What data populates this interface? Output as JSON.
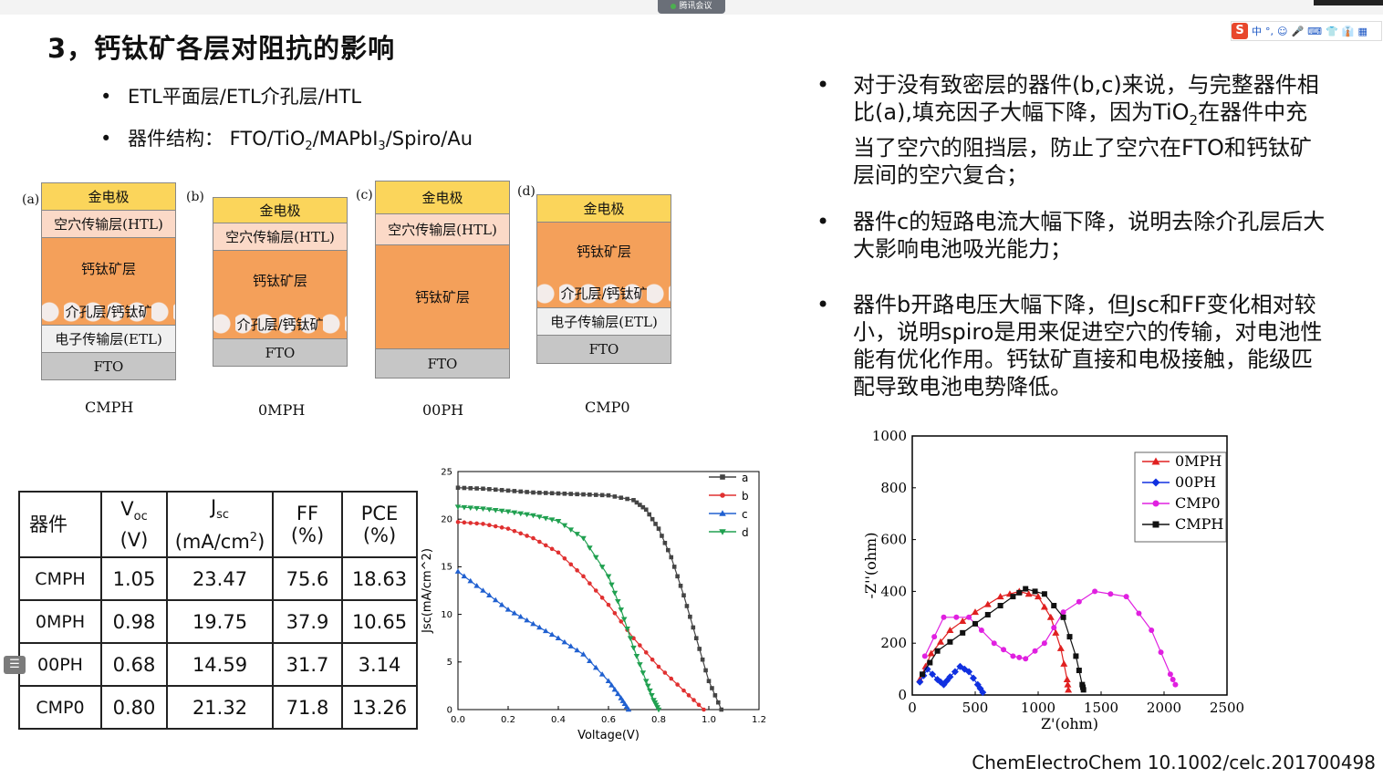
{
  "meeting": {
    "label": "腾讯会议"
  },
  "ime": {
    "logo": "S",
    "items": [
      "中",
      "°,",
      "☺",
      "🎤",
      "⌨",
      "👕",
      "👔",
      "▦"
    ]
  },
  "title": "3，钙钛矿各层对阻抗的影响",
  "bullets": {
    "b1": "ETL平面层/ETL介孔层/HTL",
    "b2_prefix": "器件结构：  FTO/TiO",
    "b2_sub1": "2",
    "b2_mid": "/MAPbI",
    "b2_sub2": "3",
    "b2_suffix": "/Spiro/Au",
    "marker": "•"
  },
  "stacks": [
    {
      "letter": "(a)",
      "name": "CMPH",
      "layers": [
        "金电极",
        "空穴传输层(HTL)",
        "钙钛矿层",
        "介孔层/钙钛矿",
        "电子传输层(ETL)",
        "FTO"
      ]
    },
    {
      "letter": "(b)",
      "name": "0MPH",
      "layers": [
        "金电极",
        "空穴传输层(HTL)",
        "钙钛矿层",
        "介孔层/钙钛矿",
        "FTO"
      ]
    },
    {
      "letter": "(c)",
      "name": "00PH",
      "layers": [
        "金电极",
        "空穴传输层(HTL)",
        "钙钛矿层",
        "FTO"
      ]
    },
    {
      "letter": "(d)",
      "name": "CMP0",
      "layers": [
        "金电极",
        "钙钛矿层",
        "介孔层/钙钛矿",
        "电子传输层(ETL)",
        "FTO"
      ]
    }
  ],
  "right_bullets": {
    "p1_a": "对于没有致密层的器件(b,c)来说，与完整器件相比(a),填充因子大幅下降，因为TiO",
    "p1_sub": "2",
    "p1_b": "在器件中充当了空穴的阻挡层，防止了空穴在FTO和钙钛矿层间的空穴复合；",
    "p2": "器件c的短路电流大幅下降，说明去除介孔层后大大影响电池吸光能力；",
    "p3": "器件b开路电压大幅下降，但Jsc和FF变化相对较小，说明spiro是用来促进空穴的传输，对电池性能有优化作用。钙钛矿直接和电极接触，能级匹配导致电池电势降低。"
  },
  "table": {
    "headers": {
      "device": "器件",
      "voc_main": "V",
      "voc_sub": "oc",
      "voc_unit": "(V)",
      "jsc_main": "J",
      "jsc_sub": "sc",
      "jsc_unit_a": "(mA/cm",
      "jsc_unit_sup": "2",
      "jsc_unit_b": ")",
      "ff": "FF",
      "ff_unit": "(%)",
      "pce": "PCE",
      "pce_unit": "(%)"
    },
    "rows": [
      {
        "device": "CMPH",
        "voc": "1.05",
        "jsc": "23.47",
        "ff": "75.6",
        "pce": "18.63"
      },
      {
        "device": "0MPH",
        "voc": "0.98",
        "jsc": "19.75",
        "ff": "37.9",
        "pce": "10.65"
      },
      {
        "device": "00PH",
        "voc": "0.68",
        "jsc": "14.59",
        "ff": "31.7",
        "pce": "3.14"
      },
      {
        "device": "CMP0",
        "voc": "0.80",
        "jsc": "21.32",
        "ff": "71.8",
        "pce": "13.26"
      }
    ]
  },
  "citation": "ChemElectroChem 10.1002/celc.201700498",
  "chart_data": [
    {
      "type": "line",
      "xlabel": "Voltage(V)",
      "ylabel": "Jsc(mA/cm^2)",
      "xlim": [
        0,
        1.2
      ],
      "ylim": [
        0,
        25
      ],
      "xticks": [
        "0.0",
        "0.2",
        "0.4",
        "0.6",
        "0.8",
        "1.0",
        "1.2"
      ],
      "yticks": [
        "0",
        "5",
        "10",
        "15",
        "20",
        "25"
      ],
      "legend": "top-right",
      "series": [
        {
          "name": "a",
          "color": "#444444",
          "marker": "square",
          "x": [
            0,
            0.1,
            0.2,
            0.3,
            0.4,
            0.5,
            0.6,
            0.7,
            0.75,
            0.8,
            0.85,
            0.9,
            0.95,
            1.0,
            1.05
          ],
          "y": [
            23.3,
            23.2,
            23.0,
            22.8,
            22.7,
            22.6,
            22.5,
            22.0,
            21.0,
            19.0,
            16.0,
            12.0,
            7.5,
            3.0,
            0
          ]
        },
        {
          "name": "b",
          "color": "#e03030",
          "marker": "circle",
          "x": [
            0,
            0.1,
            0.2,
            0.3,
            0.4,
            0.5,
            0.6,
            0.7,
            0.8,
            0.9,
            0.98
          ],
          "y": [
            19.7,
            19.5,
            19.0,
            18.0,
            16.5,
            14.0,
            11.0,
            7.5,
            4.5,
            2.0,
            0
          ]
        },
        {
          "name": "c",
          "color": "#2060d0",
          "marker": "triangle-up",
          "x": [
            0,
            0.1,
            0.2,
            0.3,
            0.4,
            0.5,
            0.6,
            0.65,
            0.68
          ],
          "y": [
            14.5,
            12.5,
            10.5,
            9.0,
            7.5,
            5.8,
            3.0,
            1.2,
            0
          ]
        },
        {
          "name": "d",
          "color": "#20a050",
          "marker": "triangle-down",
          "x": [
            0,
            0.1,
            0.2,
            0.3,
            0.4,
            0.5,
            0.6,
            0.65,
            0.7,
            0.75,
            0.78,
            0.8
          ],
          "y": [
            21.3,
            21.1,
            20.8,
            20.4,
            19.8,
            18.0,
            14.0,
            10.5,
            6.5,
            3.0,
            1.0,
            0
          ]
        }
      ]
    },
    {
      "type": "scatter",
      "xlabel": "Z'(ohm)",
      "ylabel": "-Z''(ohm)",
      "xlim": [
        0,
        2500
      ],
      "ylim": [
        0,
        1000
      ],
      "xticks": [
        "0",
        "500",
        "1000",
        "1500",
        "2000",
        "2500"
      ],
      "yticks": [
        "0",
        "200",
        "400",
        "600",
        "800",
        "1000"
      ],
      "legend": "top-right",
      "series": [
        {
          "name": "0MPH",
          "color": "#e02020",
          "marker": "triangle-up",
          "x": [
            60,
            150,
            300,
            500,
            700,
            850,
            1000,
            1100,
            1180,
            1230,
            1240
          ],
          "y": [
            60,
            160,
            250,
            320,
            380,
            400,
            380,
            300,
            180,
            60,
            20
          ]
        },
        {
          "name": "00PH",
          "color": "#1030e0",
          "marker": "diamond",
          "x": [
            60,
            120,
            200,
            250,
            300,
            380,
            450,
            520,
            560
          ],
          "y": [
            50,
            100,
            60,
            40,
            70,
            110,
            90,
            40,
            10
          ]
        },
        {
          "name": "CMP0",
          "color": "#e020e0",
          "marker": "circle",
          "x": [
            100,
            250,
            450,
            650,
            800,
            900,
            1050,
            1200,
            1450,
            1700,
            1900,
            2050,
            2090
          ],
          "y": [
            150,
            300,
            300,
            200,
            150,
            140,
            200,
            320,
            400,
            380,
            250,
            80,
            40
          ]
        },
        {
          "name": "CMPH",
          "color": "#111111",
          "marker": "square",
          "x": [
            80,
            200,
            400,
            600,
            800,
            900,
            1050,
            1200,
            1300,
            1350,
            1360
          ],
          "y": [
            80,
            170,
            240,
            310,
            380,
            410,
            390,
            300,
            150,
            40,
            20
          ]
        }
      ]
    }
  ]
}
